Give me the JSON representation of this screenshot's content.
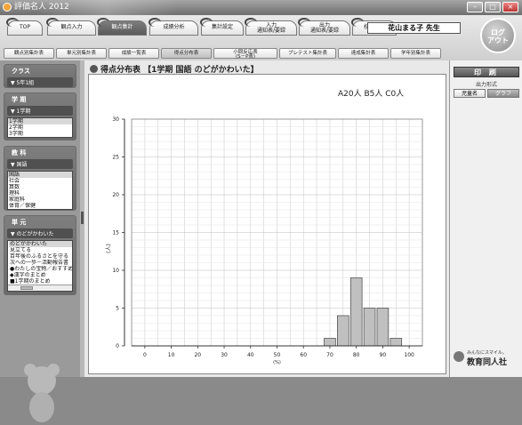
{
  "window": {
    "title": "評価名人 2012"
  },
  "main_tabs": [
    {
      "label": "TOP",
      "active": false
    },
    {
      "label": "観点入力",
      "active": false
    },
    {
      "label": "観点集計",
      "active": true
    },
    {
      "label": "成績分析",
      "active": false
    },
    {
      "label": "集計設定",
      "active": false
    },
    {
      "label": "入力\n通知表/要録",
      "active": false
    },
    {
      "label": "出力\n通知表/要録",
      "active": false
    },
    {
      "label": "校務支援",
      "active": false
    }
  ],
  "teacher": "花山まる子 先生",
  "logout": "ログ\nアウト",
  "sub_tabs": [
    {
      "label": "観点別集計表",
      "active": false
    },
    {
      "label": "単元別集計表",
      "active": false
    },
    {
      "label": "成績一覧表",
      "active": false
    },
    {
      "label": "得点分布表",
      "active": true
    },
    {
      "label": "小問反応表\n(S－P表)",
      "active": false
    },
    {
      "label": "プレテスト集計表",
      "active": false
    },
    {
      "label": "達成集計表",
      "active": false
    },
    {
      "label": "学年別集計表",
      "active": false
    }
  ],
  "sidebar": {
    "class": {
      "heading": "クラス",
      "selected": "5年1組"
    },
    "term": {
      "heading": "学 期",
      "selected": "1学期",
      "items": [
        "1学期",
        "2学期",
        "3学期"
      ]
    },
    "subject": {
      "heading": "教 科",
      "selected": "国語",
      "items": [
        "国語",
        "社会",
        "算数",
        "理科",
        "家庭科",
        "体育／保健"
      ]
    },
    "unit": {
      "heading": "単 元",
      "selected": "のどがかわいた",
      "items": [
        "のどがかわいた",
        "見立てる",
        "百年後のふるさとを守る",
        "次への一歩－活動報告書",
        "●わたしの宝物／おすすめ",
        "◆漢字のまとめ",
        "■1学期のまとめ"
      ]
    }
  },
  "content": {
    "title": "得点分布表 【1学期 国語 のどがかわいた】"
  },
  "right": {
    "print": "印 刷",
    "output_format": "出力形式",
    "format_options": [
      "児童名",
      "グラフ"
    ],
    "selected_format": "グラフ",
    "publisher_slogan": "みんなにスマイル。",
    "publisher": "教育同人社"
  },
  "chart_data": {
    "type": "bar",
    "title": "",
    "legend_text": "A20人 B5人 C0人",
    "xlabel": "(%)",
    "ylabel": "(人)",
    "xticks": [
      0,
      10,
      20,
      30,
      40,
      50,
      60,
      70,
      80,
      90,
      100
    ],
    "yticks": [
      0,
      5,
      10,
      15,
      20,
      25,
      30
    ],
    "xlim": [
      -5,
      105
    ],
    "ylim": [
      0,
      30
    ],
    "bin_width": 5,
    "bars": [
      {
        "x": 70,
        "y": 1
      },
      {
        "x": 75,
        "y": 4
      },
      {
        "x": 80,
        "y": 9
      },
      {
        "x": 85,
        "y": 5
      },
      {
        "x": 90,
        "y": 5
      },
      {
        "x": 95,
        "y": 1
      }
    ],
    "grid": true,
    "bar_color": "#c0c0c0",
    "bar_edge": "#444444"
  }
}
